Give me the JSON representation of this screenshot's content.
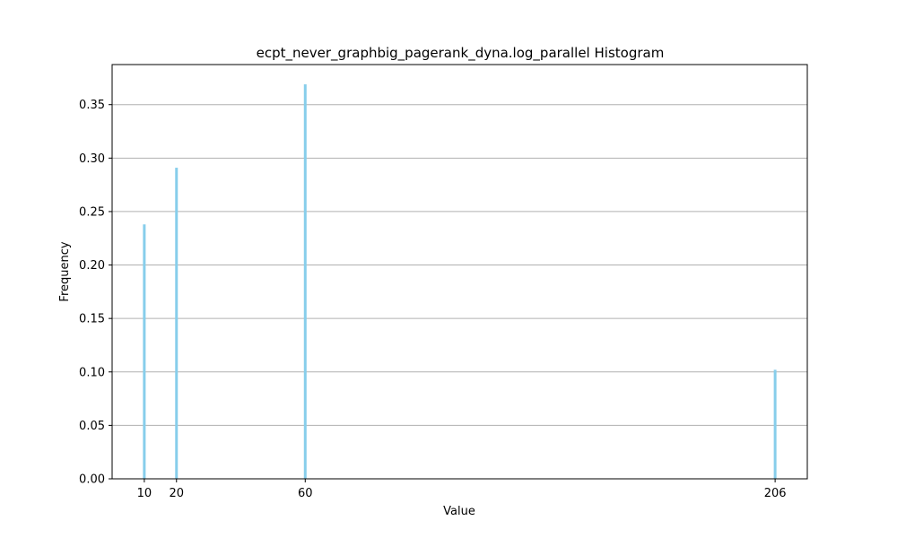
{
  "chart_data": {
    "type": "bar",
    "title": "ecpt_never_graphbig_pagerank_dyna.log_parallel Histogram",
    "xlabel": "Value",
    "ylabel": "Frequency",
    "x": [
      10,
      20,
      60,
      206
    ],
    "values": [
      0.238,
      0.291,
      0.369,
      0.102
    ],
    "xlim": [
      0,
      216
    ],
    "ylim": [
      0,
      0.3875
    ],
    "xticks": [
      10,
      20,
      60,
      206
    ],
    "yticks": [
      0.0,
      0.05,
      0.1,
      0.15,
      0.2,
      0.25,
      0.3,
      0.35
    ],
    "ytick_labels": [
      "0.00",
      "0.05",
      "0.10",
      "0.15",
      "0.20",
      "0.25",
      "0.30",
      "0.35"
    ],
    "grid": "y",
    "bar_color": "#87ceeb",
    "grid_color": "#b0b0b0"
  }
}
